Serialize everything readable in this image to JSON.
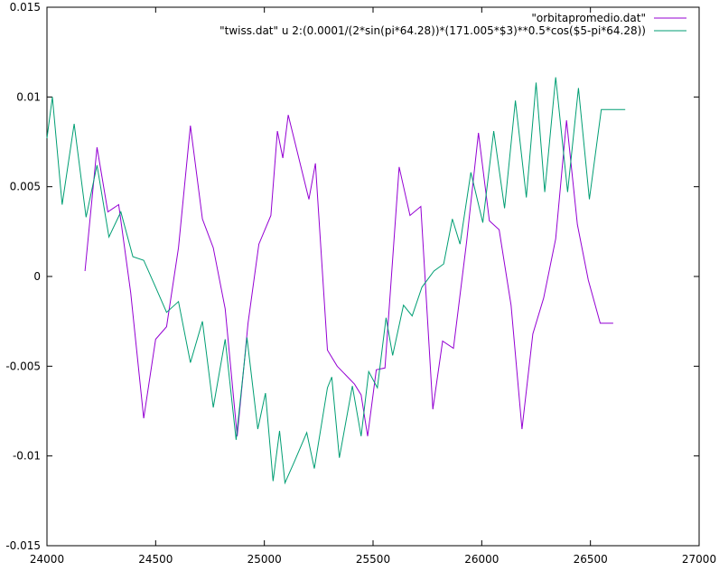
{
  "chart_data": {
    "type": "line",
    "title": "",
    "xlabel": "",
    "ylabel": "",
    "xlim": [
      24000,
      27000
    ],
    "ylim": [
      -0.015,
      0.015
    ],
    "x_ticks": [
      24000,
      24500,
      25000,
      25500,
      26000,
      26500,
      27000
    ],
    "x_tick_labels": [
      "24000",
      "24500",
      "25000",
      "25500",
      "26000",
      "26500",
      "27000"
    ],
    "y_ticks": [
      -0.015,
      -0.01,
      -0.005,
      0,
      0.005,
      0.01,
      0.015
    ],
    "y_tick_labels": [
      "-0.015",
      "-0.01",
      "-0.005",
      "0",
      "0.005",
      "0.01",
      "0.015"
    ],
    "grid": false,
    "legend_position": "top-right",
    "series": [
      {
        "name": "\"orbitapromedio.dat\"",
        "color": "#9400d3",
        "x": [
          24175,
          24230,
          24280,
          24330,
          24385,
          24445,
          24500,
          24550,
          24605,
          24660,
          24715,
          24765,
          24820,
          24875,
          24925,
          24975,
          25030,
          25060,
          25085,
          25110,
          25205,
          25235,
          25290,
          25335,
          25415,
          25445,
          25475,
          25515,
          25555,
          25620,
          25670,
          25720,
          25775,
          25820,
          25870,
          25930,
          25985,
          26035,
          26080,
          26135,
          26185,
          26235,
          26285,
          26340,
          26390,
          26440,
          26490,
          26545,
          26605
        ],
        "y": [
          0.0003,
          0.0072,
          0.0036,
          0.004,
          -0.0009,
          -0.0079,
          -0.0035,
          -0.0028,
          0.0016,
          0.0084,
          0.0032,
          0.0016,
          -0.0018,
          -0.0089,
          -0.0026,
          0.0018,
          0.0034,
          0.0081,
          0.0066,
          0.009,
          0.0043,
          0.0063,
          -0.0041,
          -0.005,
          -0.006,
          -0.0066,
          -0.0089,
          -0.0052,
          -0.0051,
          0.0061,
          0.0034,
          0.0039,
          -0.0074,
          -0.0036,
          -0.004,
          0.0019,
          0.008,
          0.0031,
          0.0026,
          -0.0016,
          -0.0085,
          -0.0032,
          -0.0012,
          0.0021,
          0.0087,
          0.0029,
          -0.0002,
          -0.0026,
          -0.0026
        ]
      },
      {
        "name": "\"twiss.dat\" u 2:(0.0001/(2*sin(pi*64.28))*(171.005*$3)**0.5*cos($5-pi*64.28))",
        "color": "#009e73",
        "x": [
          24000,
          24025,
          24070,
          24125,
          24180,
          24230,
          24285,
          24340,
          24395,
          24445,
          24500,
          24550,
          24605,
          24660,
          24715,
          24765,
          24820,
          24870,
          24920,
          24970,
          25005,
          25040,
          25070,
          25095,
          25135,
          25195,
          25230,
          25290,
          25310,
          25345,
          25405,
          25445,
          25480,
          25520,
          25560,
          25590,
          25640,
          25680,
          25725,
          25780,
          25825,
          25865,
          25900,
          25950,
          26005,
          26055,
          26105,
          26155,
          26205,
          26250,
          26290,
          26340,
          26395,
          26445,
          26495,
          26550,
          26605,
          26660
        ],
        "y": [
          0.0077,
          0.01,
          0.004,
          0.0085,
          0.0033,
          0.0062,
          0.0022,
          0.0036,
          0.0011,
          0.0009,
          -0.0006,
          -0.002,
          -0.0014,
          -0.0048,
          -0.0025,
          -0.0073,
          -0.0035,
          -0.0091,
          -0.0034,
          -0.0085,
          -0.0065,
          -0.0114,
          -0.0086,
          -0.0115,
          -0.0104,
          -0.0087,
          -0.0107,
          -0.0062,
          -0.0056,
          -0.0101,
          -0.0061,
          -0.0089,
          -0.0053,
          -0.0062,
          -0.0023,
          -0.0044,
          -0.0016,
          -0.0022,
          -0.0006,
          0.0003,
          0.0007,
          0.0032,
          0.0018,
          0.0058,
          0.003,
          0.0081,
          0.0038,
          0.0098,
          0.0044,
          0.0108,
          0.0047,
          0.0111,
          0.0047,
          0.0105,
          0.0043,
          0.0093,
          0.0093,
          0.0093
        ]
      }
    ]
  }
}
